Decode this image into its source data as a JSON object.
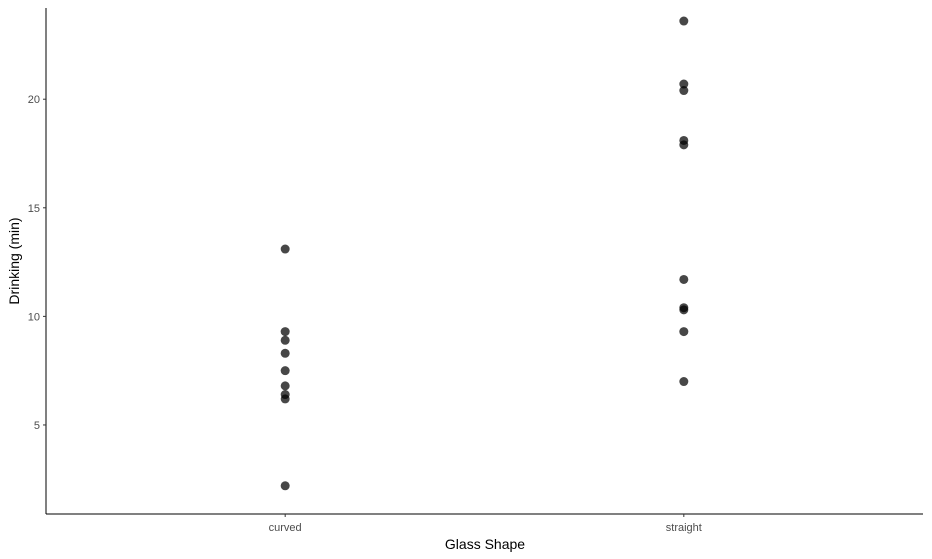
{
  "chart_data": {
    "type": "scatter",
    "xlabel": "Glass Shape",
    "ylabel": "Drinking (min)",
    "categories": [
      "curved",
      "straight"
    ],
    "ylim": [
      0.9,
      24.2
    ],
    "yticks": [
      5,
      10,
      15,
      20
    ],
    "grid": false,
    "legend": "none",
    "point_color": "#333333",
    "points": [
      {
        "x": "curved",
        "y": 13.1
      },
      {
        "x": "curved",
        "y": 9.3
      },
      {
        "x": "curved",
        "y": 8.9
      },
      {
        "x": "curved",
        "y": 8.3
      },
      {
        "x": "curved",
        "y": 7.5
      },
      {
        "x": "curved",
        "y": 6.8
      },
      {
        "x": "curved",
        "y": 6.4
      },
      {
        "x": "curved",
        "y": 6.2
      },
      {
        "x": "curved",
        "y": 2.2
      },
      {
        "x": "straight",
        "y": 23.6
      },
      {
        "x": "straight",
        "y": 20.7
      },
      {
        "x": "straight",
        "y": 20.4
      },
      {
        "x": "straight",
        "y": 18.1
      },
      {
        "x": "straight",
        "y": 17.9
      },
      {
        "x": "straight",
        "y": 11.7
      },
      {
        "x": "straight",
        "y": 10.4
      },
      {
        "x": "straight",
        "y": 10.3
      },
      {
        "x": "straight",
        "y": 9.3
      },
      {
        "x": "straight",
        "y": 7.0
      }
    ]
  }
}
